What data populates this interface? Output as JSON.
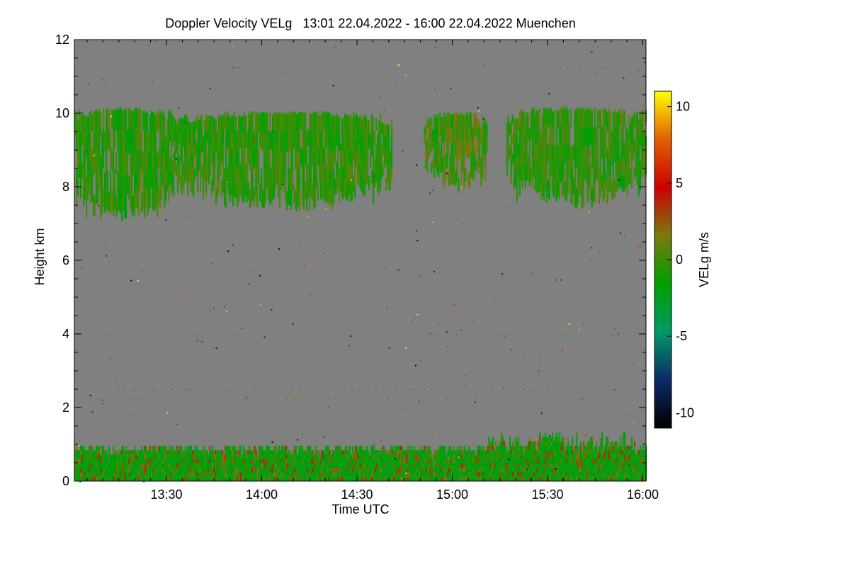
{
  "chart_data": {
    "type": "heatmap",
    "title": "Doppler Velocity VELg   13:01 22.04.2022 - 16:00 22.04.2022 Muenchen",
    "xlabel": "Time UTC",
    "ylabel": "Height km",
    "x_range": [
      "13:01",
      "16:01"
    ],
    "xlim_minutes": [
      781,
      961
    ],
    "x_ticks": [
      {
        "label": "13:30",
        "minutes": 810
      },
      {
        "label": "14:00",
        "minutes": 840
      },
      {
        "label": "14:30",
        "minutes": 870
      },
      {
        "label": "15:00",
        "minutes": 900
      },
      {
        "label": "15:30",
        "minutes": 930
      },
      {
        "label": "16:00",
        "minutes": 960
      }
    ],
    "ylim": [
      0,
      12
    ],
    "y_ticks": [
      "0",
      "2",
      "4",
      "6",
      "8",
      "10",
      "12"
    ],
    "background_color": "#808080",
    "colorbar": {
      "label": "VELg m/s",
      "range": [
        -11,
        11
      ],
      "ticks": [
        "-10",
        "-5",
        "0",
        "5",
        "10"
      ],
      "tick_values": [
        -10,
        -5,
        0,
        5,
        10
      ],
      "colors": [
        "#000000",
        "#0a2a66",
        "#009966",
        "#00a000",
        "#7a7a10",
        "#cc0000",
        "#e06000",
        "#ffff00"
      ]
    },
    "regions": [
      {
        "name": "upper cloud layer A",
        "x_minutes": [
          781,
          812
        ],
        "height_km": [
          7.0,
          10.2
        ],
        "velocity_ms": [
          -2,
          1
        ]
      },
      {
        "name": "upper cloud layer B",
        "x_minutes": [
          812,
          881
        ],
        "height_km": [
          7.3,
          10.1
        ],
        "velocity_ms": [
          -2,
          1
        ]
      },
      {
        "name": "upper cloud layer C",
        "x_minutes": [
          891,
          911
        ],
        "height_km": [
          7.8,
          10.1
        ],
        "velocity_ms": [
          -2,
          2
        ]
      },
      {
        "name": "upper cloud layer D",
        "x_minutes": [
          917,
          961
        ],
        "height_km": [
          7.4,
          10.2
        ],
        "velocity_ms": [
          -2,
          1
        ]
      },
      {
        "name": "boundary layer",
        "x_minutes": [
          781,
          961
        ],
        "height_km": [
          0.0,
          1.4
        ],
        "velocity_ms": [
          -3,
          4
        ]
      }
    ]
  }
}
